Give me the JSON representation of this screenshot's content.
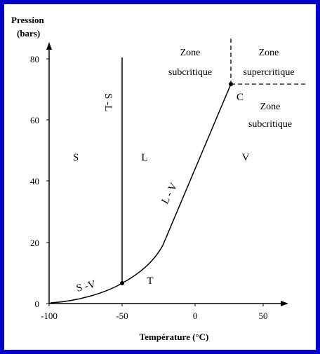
{
  "diagram": {
    "y_axis": {
      "title_line1": "Pression",
      "title_line2": "(bars)",
      "ticks": [
        "0",
        "20",
        "40",
        "60",
        "80"
      ]
    },
    "x_axis": {
      "title": "Température (°C)",
      "ticks": [
        "-100",
        "-50",
        "0",
        "50"
      ]
    },
    "regions": {
      "solid": "S",
      "liquid": "L",
      "vapor": "V"
    },
    "curve_labels": {
      "solid_liquid": "S -L",
      "liquid_vapor": "L - V",
      "solid_vapor": "S -V"
    },
    "points": {
      "triple": "T",
      "critical": "C"
    },
    "zones": {
      "top_left_line1": "Zone",
      "top_left_line2": "subcritique",
      "top_right_line1": "Zone",
      "top_right_line2": "supercritique",
      "right_line1": "Zone",
      "right_line2": "subcritique"
    }
  }
}
